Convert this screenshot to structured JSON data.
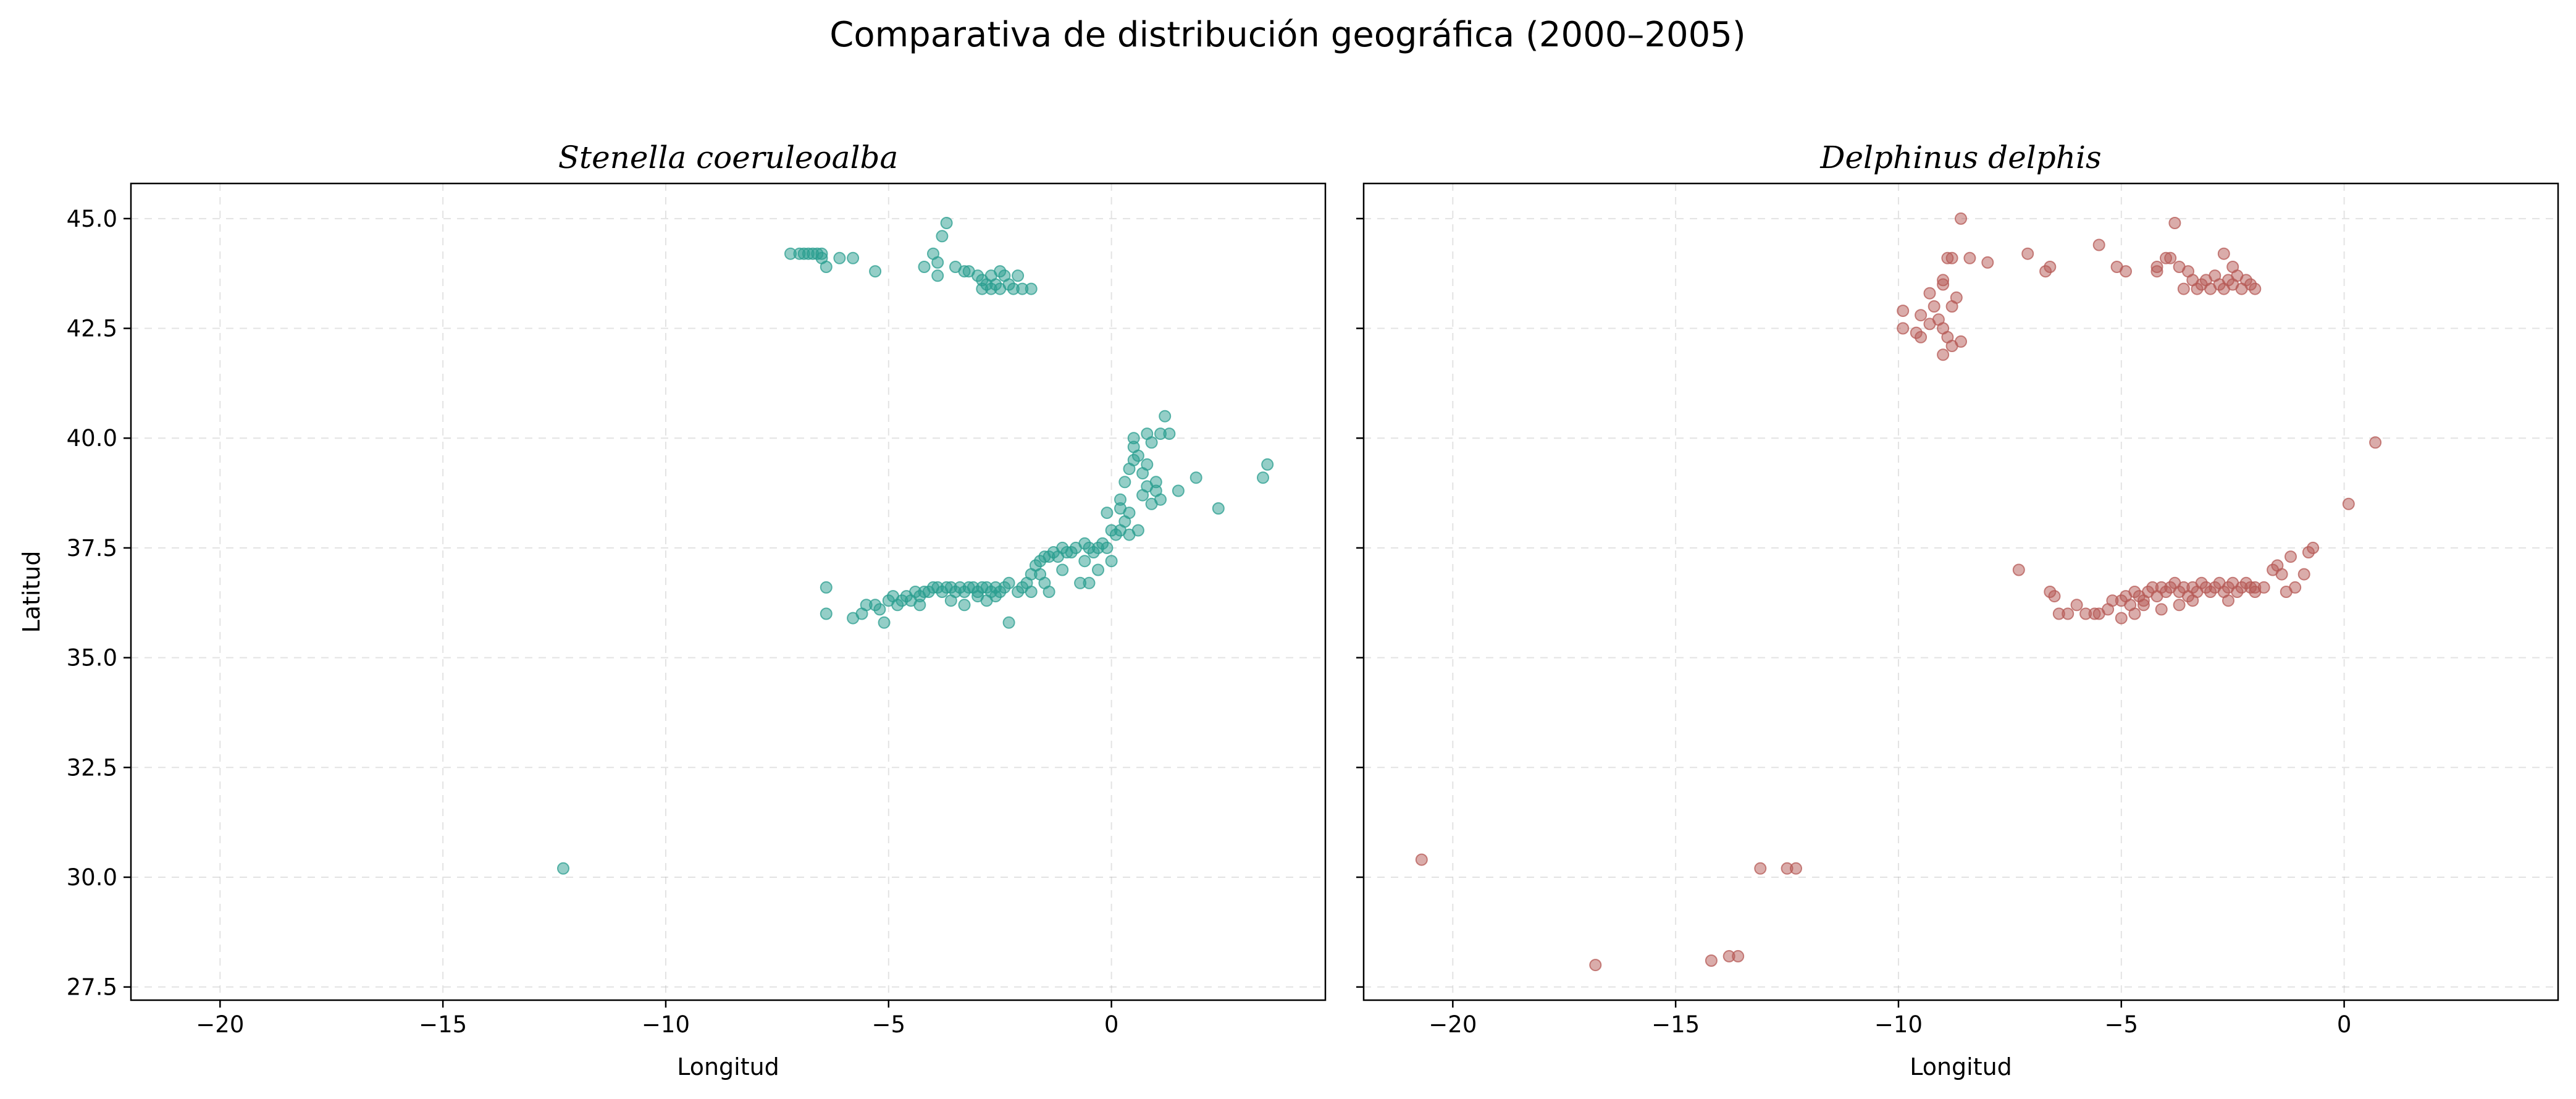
{
  "figure": {
    "title": "Comparativa de distribución geográfica (2000–2005)"
  },
  "chart_data": [
    {
      "type": "scatter",
      "title": "Stenella coeruleoalba",
      "xlabel": "Longitud",
      "ylabel": "Latitud",
      "xlim": [
        -22,
        4.8
      ],
      "ylim": [
        27.2,
        45.8
      ],
      "xticks": [
        "−20",
        "−15",
        "−10",
        "−5",
        "0"
      ],
      "yticks": [
        "27.5",
        "30.0",
        "32.5",
        "35.0",
        "37.5",
        "40.0",
        "42.5",
        "45.0"
      ],
      "grid": true,
      "color": "#2a9d8f",
      "points": [
        [
          -7.2,
          44.2
        ],
        [
          -7.0,
          44.2
        ],
        [
          -6.9,
          44.2
        ],
        [
          -6.8,
          44.2
        ],
        [
          -6.7,
          44.2
        ],
        [
          -6.6,
          44.2
        ],
        [
          -6.5,
          44.1
        ],
        [
          -6.5,
          44.2
        ],
        [
          -6.4,
          43.9
        ],
        [
          -6.1,
          44.1
        ],
        [
          -5.8,
          44.1
        ],
        [
          -5.3,
          43.8
        ],
        [
          -4.2,
          43.9
        ],
        [
          -4.0,
          44.2
        ],
        [
          -3.9,
          44.0
        ],
        [
          -3.9,
          43.7
        ],
        [
          -3.8,
          44.6
        ],
        [
          -3.7,
          44.9
        ],
        [
          -3.5,
          43.9
        ],
        [
          -3.3,
          43.8
        ],
        [
          -3.2,
          43.8
        ],
        [
          -3.0,
          43.7
        ],
        [
          -2.9,
          43.6
        ],
        [
          -2.8,
          43.5
        ],
        [
          -2.7,
          43.4
        ],
        [
          -2.7,
          43.7
        ],
        [
          -2.6,
          43.5
        ],
        [
          -2.5,
          43.4
        ],
        [
          -2.4,
          43.7
        ],
        [
          -2.3,
          43.5
        ],
        [
          -2.2,
          43.4
        ],
        [
          -2.1,
          43.7
        ],
        [
          -2.0,
          43.4
        ],
        [
          -1.8,
          43.4
        ],
        [
          -2.5,
          43.8
        ],
        [
          -2.9,
          43.4
        ],
        [
          -6.4,
          36.6
        ],
        [
          -6.4,
          36.0
        ],
        [
          -5.8,
          35.9
        ],
        [
          -5.6,
          36.0
        ],
        [
          -5.2,
          36.1
        ],
        [
          -5.1,
          35.8
        ],
        [
          -5.0,
          36.3
        ],
        [
          -4.9,
          36.4
        ],
        [
          -4.7,
          36.3
        ],
        [
          -4.6,
          36.4
        ],
        [
          -4.5,
          36.3
        ],
        [
          -4.4,
          36.5
        ],
        [
          -4.3,
          36.4
        ],
        [
          -4.2,
          36.5
        ],
        [
          -4.1,
          36.5
        ],
        [
          -4.0,
          36.6
        ],
        [
          -3.9,
          36.6
        ],
        [
          -3.8,
          36.5
        ],
        [
          -3.7,
          36.6
        ],
        [
          -3.6,
          36.6
        ],
        [
          -3.5,
          36.5
        ],
        [
          -3.4,
          36.6
        ],
        [
          -3.3,
          36.5
        ],
        [
          -3.2,
          36.6
        ],
        [
          -3.1,
          36.6
        ],
        [
          -3.0,
          36.5
        ],
        [
          -2.9,
          36.6
        ],
        [
          -2.8,
          36.6
        ],
        [
          -2.7,
          36.5
        ],
        [
          -2.6,
          36.4
        ],
        [
          -2.5,
          36.5
        ],
        [
          -2.4,
          36.6
        ],
        [
          -2.3,
          36.7
        ],
        [
          -2.3,
          35.8
        ],
        [
          -2.1,
          36.5
        ],
        [
          -2.0,
          36.6
        ],
        [
          -1.9,
          36.7
        ],
        [
          -1.8,
          36.9
        ],
        [
          -1.7,
          37.1
        ],
        [
          -1.6,
          37.2
        ],
        [
          -1.5,
          37.3
        ],
        [
          -1.4,
          37.3
        ],
        [
          -1.3,
          37.4
        ],
        [
          -1.2,
          37.3
        ],
        [
          -1.1,
          37.5
        ],
        [
          -1.0,
          37.4
        ],
        [
          -0.9,
          37.4
        ],
        [
          -0.8,
          37.5
        ],
        [
          -0.7,
          36.7
        ],
        [
          -0.6,
          37.6
        ],
        [
          -0.5,
          37.5
        ],
        [
          -0.4,
          37.4
        ],
        [
          -0.3,
          37.5
        ],
        [
          -0.2,
          37.6
        ],
        [
          -0.1,
          37.5
        ],
        [
          0.0,
          37.9
        ],
        [
          0.0,
          37.2
        ],
        [
          0.1,
          37.8
        ],
        [
          0.2,
          37.9
        ],
        [
          0.3,
          38.1
        ],
        [
          0.4,
          38.3
        ],
        [
          0.3,
          39.0
        ],
        [
          0.4,
          39.3
        ],
        [
          0.5,
          39.5
        ],
        [
          0.5,
          39.8
        ],
        [
          0.6,
          39.6
        ],
        [
          0.7,
          39.2
        ],
        [
          0.7,
          38.7
        ],
        [
          0.8,
          39.4
        ],
        [
          0.8,
          38.9
        ],
        [
          0.9,
          39.9
        ],
        [
          0.9,
          38.5
        ],
        [
          1.0,
          38.8
        ],
        [
          1.1,
          40.1
        ],
        [
          1.2,
          40.5
        ],
        [
          1.3,
          40.1
        ],
        [
          -2.6,
          36.6
        ],
        [
          -1.4,
          36.5
        ],
        [
          -1.5,
          36.7
        ],
        [
          -3.3,
          36.2
        ],
        [
          -5.3,
          36.2
        ],
        [
          1.5,
          38.8
        ],
        [
          1.9,
          39.1
        ],
        [
          2.4,
          38.4
        ],
        [
          3.5,
          39.4
        ],
        [
          3.4,
          39.1
        ],
        [
          -12.3,
          30.2
        ],
        [
          0.2,
          38.4
        ],
        [
          0.4,
          37.8
        ],
        [
          0.6,
          37.9
        ],
        [
          1.0,
          39.0
        ],
        [
          1.1,
          38.6
        ],
        [
          -0.1,
          38.3
        ],
        [
          0.2,
          38.6
        ],
        [
          -0.5,
          36.7
        ],
        [
          -1.8,
          36.5
        ],
        [
          -4.8,
          36.2
        ],
        [
          -3.6,
          36.3
        ],
        [
          -2.8,
          36.3
        ],
        [
          -1.1,
          37.0
        ],
        [
          -0.6,
          37.2
        ],
        [
          0.5,
          40.0
        ],
        [
          0.8,
          40.1
        ],
        [
          -5.5,
          36.2
        ],
        [
          -4.3,
          36.2
        ],
        [
          -3.0,
          36.4
        ],
        [
          -1.6,
          36.9
        ],
        [
          -0.3,
          37.0
        ]
      ]
    },
    {
      "type": "scatter",
      "title": "Delphinus delphis",
      "xlabel": "Longitud",
      "ylabel": "",
      "xlim": [
        -22,
        4.8
      ],
      "ylim": [
        27.2,
        45.8
      ],
      "xticks": [
        "−20",
        "−15",
        "−10",
        "−5",
        "0"
      ],
      "yticks": [
        "27.5",
        "30.0",
        "32.5",
        "35.0",
        "37.5",
        "40.0",
        "42.5",
        "45.0"
      ],
      "grid": true,
      "color": "#b55a55",
      "points": [
        [
          -8.6,
          45.0
        ],
        [
          -8.4,
          44.1
        ],
        [
          -8.8,
          44.1
        ],
        [
          -8.9,
          44.1
        ],
        [
          -8.0,
          44.0
        ],
        [
          -7.1,
          44.2
        ],
        [
          -6.6,
          43.9
        ],
        [
          -6.7,
          43.8
        ],
        [
          -5.5,
          44.4
        ],
        [
          -5.1,
          43.9
        ],
        [
          -4.9,
          43.8
        ],
        [
          -4.2,
          43.9
        ],
        [
          -4.0,
          44.1
        ],
        [
          -3.8,
          44.9
        ],
        [
          -3.9,
          44.1
        ],
        [
          -3.7,
          43.9
        ],
        [
          -3.5,
          43.8
        ],
        [
          -3.4,
          43.6
        ],
        [
          -3.3,
          43.4
        ],
        [
          -3.2,
          43.5
        ],
        [
          -3.1,
          43.6
        ],
        [
          -3.0,
          43.4
        ],
        [
          -2.9,
          43.7
        ],
        [
          -2.8,
          43.5
        ],
        [
          -2.7,
          44.2
        ],
        [
          -2.7,
          43.4
        ],
        [
          -2.6,
          43.6
        ],
        [
          -2.5,
          43.5
        ],
        [
          -2.4,
          43.7
        ],
        [
          -2.3,
          43.4
        ],
        [
          -2.2,
          43.6
        ],
        [
          -2.1,
          43.5
        ],
        [
          -2.0,
          43.4
        ],
        [
          -2.5,
          43.9
        ],
        [
          -3.6,
          43.4
        ],
        [
          -4.2,
          43.8
        ],
        [
          -9.0,
          43.6
        ],
        [
          -9.0,
          43.5
        ],
        [
          -8.7,
          43.2
        ],
        [
          -8.8,
          43.0
        ],
        [
          -9.2,
          43.0
        ],
        [
          -9.5,
          42.8
        ],
        [
          -9.9,
          42.9
        ],
        [
          -9.9,
          42.5
        ],
        [
          -9.6,
          42.4
        ],
        [
          -9.3,
          42.6
        ],
        [
          -9.0,
          42.5
        ],
        [
          -8.9,
          42.3
        ],
        [
          -9.0,
          41.9
        ],
        [
          -8.8,
          42.1
        ],
        [
          -9.5,
          42.3
        ],
        [
          -9.1,
          42.7
        ],
        [
          -8.6,
          42.2
        ],
        [
          -9.3,
          43.3
        ],
        [
          -7.3,
          37.0
        ],
        [
          -6.6,
          36.5
        ],
        [
          -6.5,
          36.4
        ],
        [
          -6.4,
          36.0
        ],
        [
          -6.2,
          36.0
        ],
        [
          -6.0,
          36.2
        ],
        [
          -5.8,
          36.0
        ],
        [
          -5.5,
          36.0
        ],
        [
          -5.3,
          36.1
        ],
        [
          -5.2,
          36.3
        ],
        [
          -5.0,
          36.3
        ],
        [
          -4.9,
          36.4
        ],
        [
          -4.8,
          36.2
        ],
        [
          -4.7,
          36.5
        ],
        [
          -4.6,
          36.4
        ],
        [
          -4.5,
          36.3
        ],
        [
          -4.4,
          36.5
        ],
        [
          -4.3,
          36.6
        ],
        [
          -4.2,
          36.4
        ],
        [
          -4.1,
          36.6
        ],
        [
          -4.0,
          36.5
        ],
        [
          -3.9,
          36.6
        ],
        [
          -3.8,
          36.7
        ],
        [
          -3.7,
          36.5
        ],
        [
          -3.6,
          36.6
        ],
        [
          -3.5,
          36.4
        ],
        [
          -3.4,
          36.6
        ],
        [
          -3.3,
          36.5
        ],
        [
          -3.2,
          36.7
        ],
        [
          -3.1,
          36.6
        ],
        [
          -3.0,
          36.5
        ],
        [
          -2.9,
          36.6
        ],
        [
          -2.8,
          36.7
        ],
        [
          -2.7,
          36.5
        ],
        [
          -2.6,
          36.6
        ],
        [
          -2.5,
          36.7
        ],
        [
          -2.4,
          36.5
        ],
        [
          -2.3,
          36.6
        ],
        [
          -2.2,
          36.7
        ],
        [
          -2.1,
          36.6
        ],
        [
          -2.0,
          36.5
        ],
        [
          -1.8,
          36.6
        ],
        [
          -1.6,
          37.0
        ],
        [
          -1.5,
          37.1
        ],
        [
          -1.4,
          36.9
        ],
        [
          -1.2,
          37.3
        ],
        [
          -1.1,
          36.6
        ],
        [
          -0.9,
          36.9
        ],
        [
          -0.8,
          37.4
        ],
        [
          -0.7,
          37.5
        ],
        [
          -3.7,
          36.2
        ],
        [
          -3.4,
          36.3
        ],
        [
          -4.1,
          36.1
        ],
        [
          -2.6,
          36.3
        ],
        [
          -4.5,
          36.2
        ],
        [
          -5.6,
          36.0
        ],
        [
          -5.0,
          35.9
        ],
        [
          -4.7,
          36.0
        ],
        [
          -2.0,
          36.6
        ],
        [
          -1.3,
          36.5
        ],
        [
          0.1,
          38.5
        ],
        [
          0.7,
          39.9
        ],
        [
          -20.7,
          30.4
        ],
        [
          -16.8,
          28.0
        ],
        [
          -14.2,
          28.1
        ],
        [
          -13.8,
          28.2
        ],
        [
          -13.6,
          28.2
        ],
        [
          -13.1,
          30.2
        ],
        [
          -12.5,
          30.2
        ],
        [
          -12.3,
          30.2
        ]
      ]
    }
  ]
}
